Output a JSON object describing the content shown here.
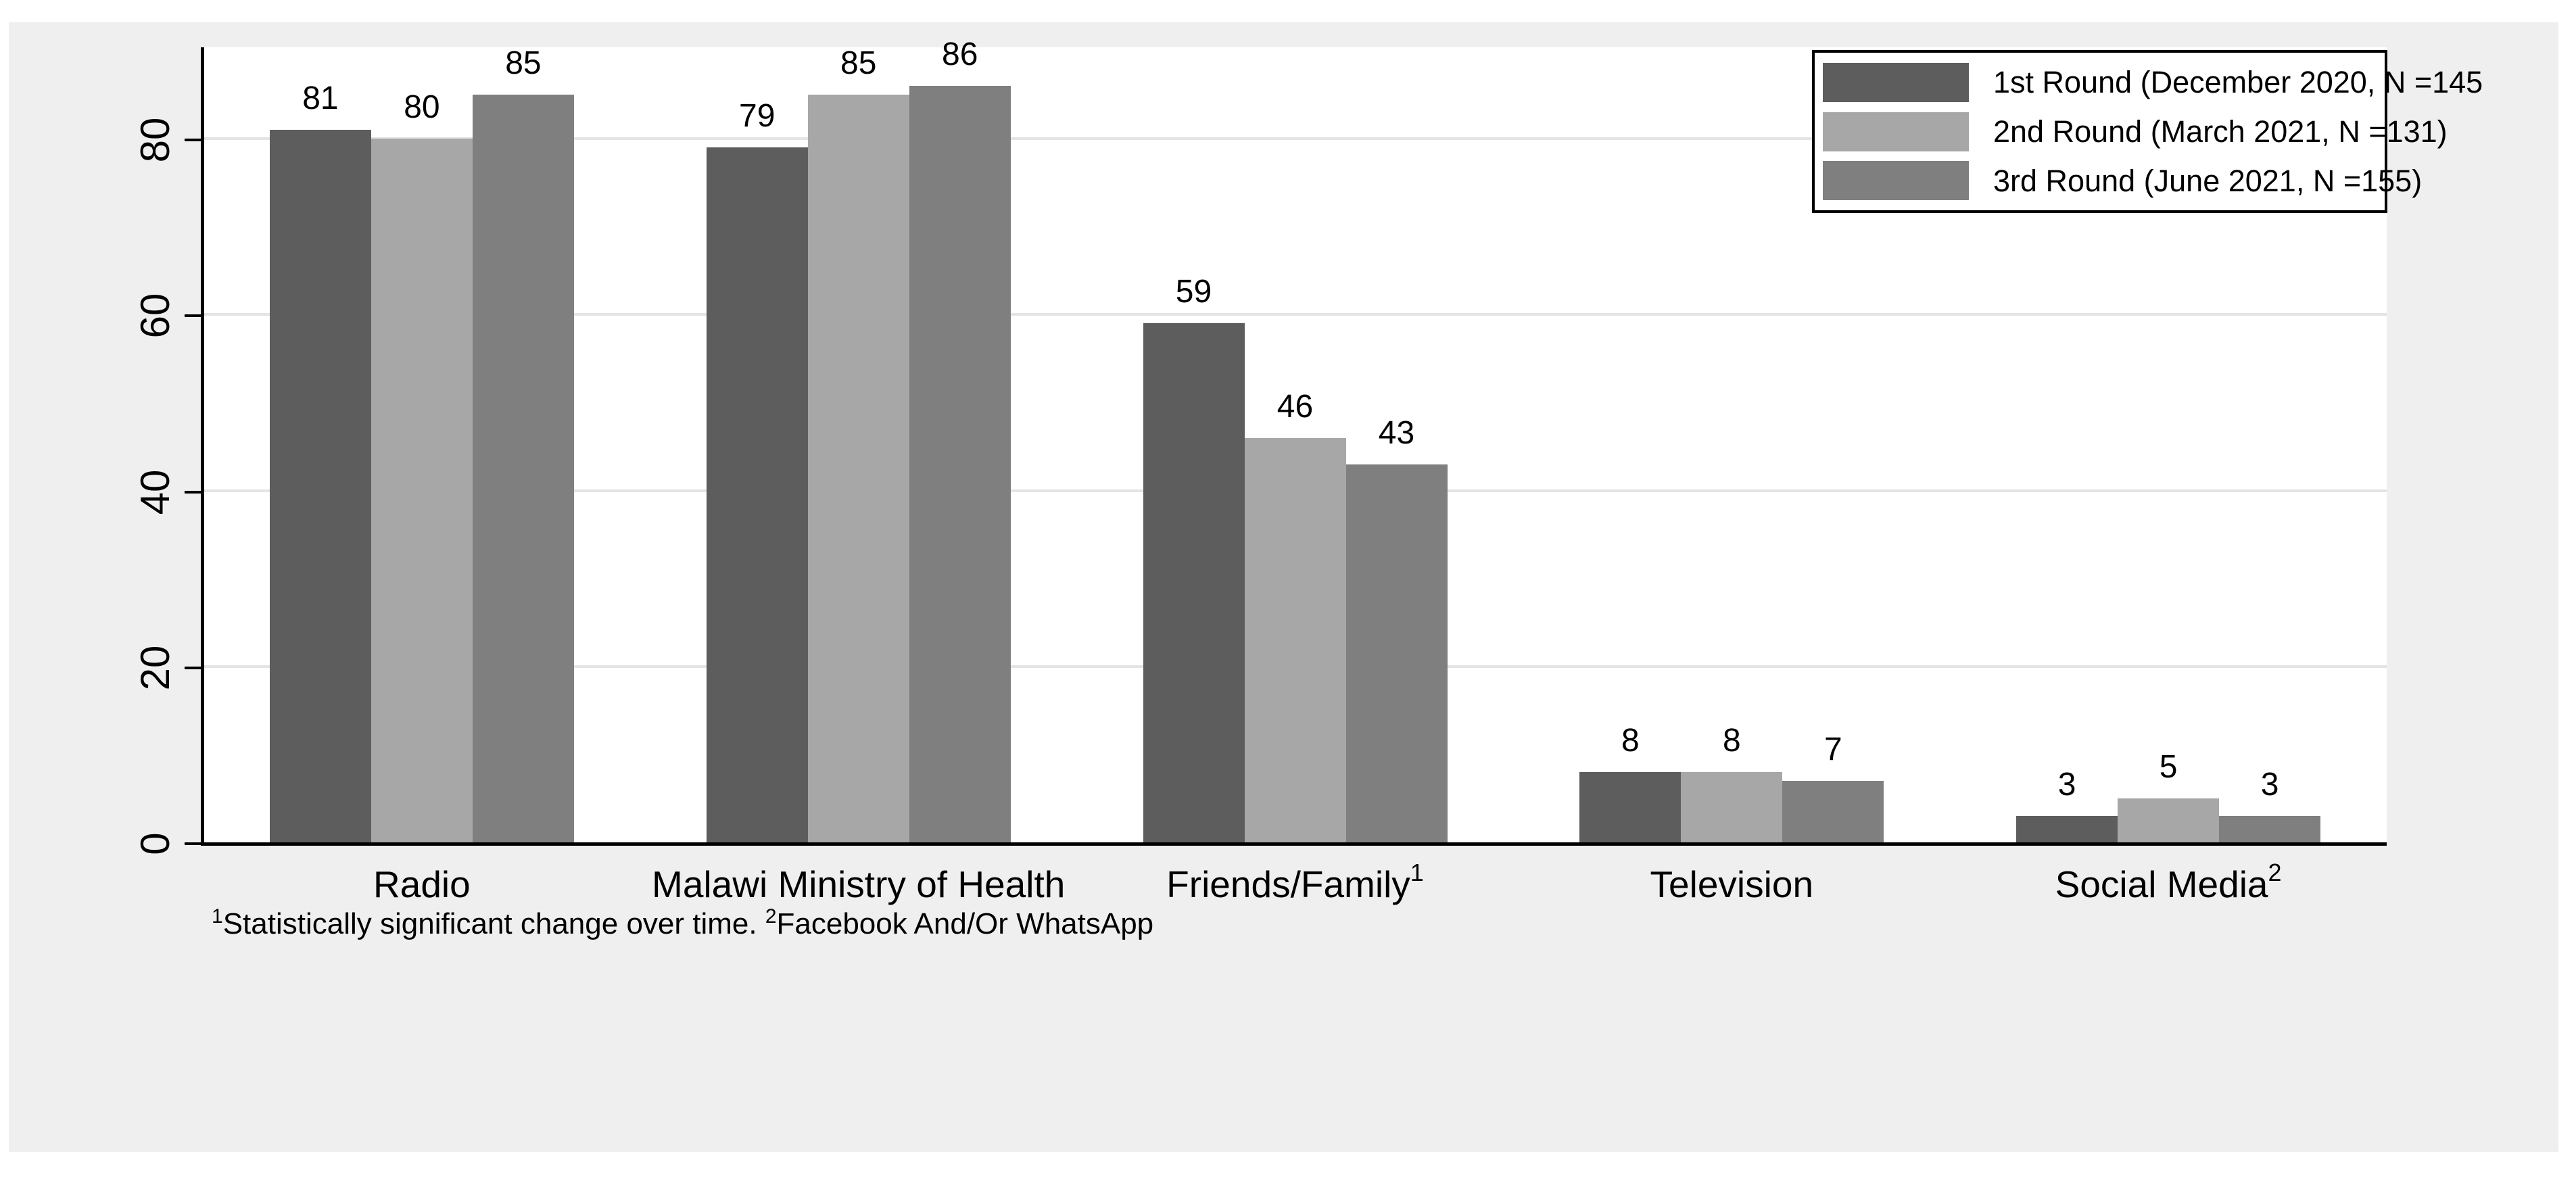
{
  "chart_data": {
    "type": "bar",
    "title": "",
    "categories": [
      "Radio",
      "Malawi Ministry of Health",
      "Friends/Family",
      "Television",
      "Social Media"
    ],
    "category_superscripts": [
      "",
      "",
      "1",
      "",
      "2"
    ],
    "series": [
      {
        "name": "1st Round (December 2020, N =145",
        "color": "#5d5d5d",
        "values": [
          81,
          79,
          59,
          8,
          3
        ]
      },
      {
        "name": "2nd Round (March 2021, N =131)",
        "color": "#a7a7a7",
        "values": [
          80,
          85,
          46,
          8,
          5
        ]
      },
      {
        "name": "3rd Round (June 2021, N =155)",
        "color": "#7f7f7f",
        "values": [
          85,
          86,
          43,
          7,
          3
        ]
      }
    ],
    "xlabel": "",
    "ylabel": "",
    "yticks": [
      0,
      20,
      40,
      60,
      80
    ],
    "ylim": [
      0,
      90.4
    ],
    "grid": true,
    "bar_value_labels": true,
    "legend_position": "top-right"
  },
  "footnote": {
    "sup1": "1",
    "text1": "Statistically significant change over time. ",
    "sup2": "2",
    "text2": "Facebook And/Or WhatsApp"
  },
  "colors": {
    "canvas_bg": "#efefef",
    "plot_bg": "#ffffff",
    "grid": "#e4e4e4",
    "axis": "#000000",
    "text": "#000000"
  }
}
